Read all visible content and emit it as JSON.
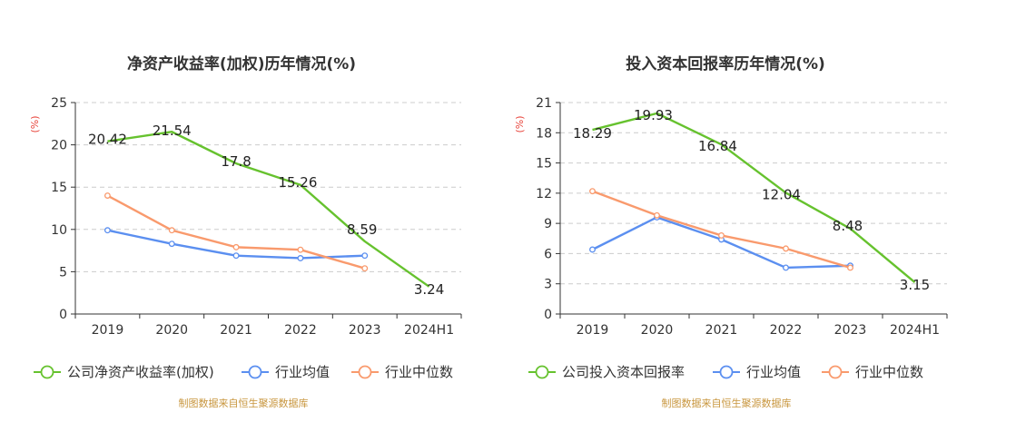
{
  "chart_data": [
    {
      "type": "line",
      "title": "净资产收益率(加权)历年情况(%)",
      "ylabel": "(%)",
      "categories": [
        "2019",
        "2020",
        "2021",
        "2022",
        "2023",
        "2024H1"
      ],
      "ylim": [
        0,
        25
      ],
      "yticks": [
        0,
        5,
        10,
        15,
        20,
        25
      ],
      "grid": true,
      "legend_position": "bottom",
      "source": "制图数据来自恒生聚源数据库",
      "series": [
        {
          "name": "公司净资产收益率(加权)",
          "color": "#66c22e",
          "labels": true,
          "values": [
            20.42,
            21.54,
            17.8,
            15.26,
            8.59,
            3.24
          ]
        },
        {
          "name": "行业均值",
          "color": "#5b8ff0",
          "labels": false,
          "values": [
            9.9,
            8.3,
            6.9,
            6.6,
            6.9,
            null
          ]
        },
        {
          "name": "行业中位数",
          "color": "#f99a6d",
          "labels": false,
          "values": [
            14.0,
            9.9,
            7.9,
            7.6,
            5.4,
            null
          ]
        }
      ]
    },
    {
      "type": "line",
      "title": "投入资本回报率历年情况(%)",
      "ylabel": "(%)",
      "categories": [
        "2019",
        "2020",
        "2021",
        "2022",
        "2023",
        "2024H1"
      ],
      "ylim": [
        0,
        21
      ],
      "yticks": [
        0,
        3,
        6,
        9,
        12,
        15,
        18,
        21
      ],
      "grid": true,
      "legend_position": "bottom",
      "source": "制图数据来自恒生聚源数据库",
      "series": [
        {
          "name": "公司投入资本回报率",
          "color": "#66c22e",
          "labels": true,
          "values": [
            18.29,
            19.93,
            16.84,
            12.04,
            8.48,
            3.15
          ]
        },
        {
          "name": "行业均值",
          "color": "#5b8ff0",
          "labels": false,
          "values": [
            6.4,
            9.6,
            7.4,
            4.6,
            4.8,
            null
          ]
        },
        {
          "name": "行业中位数",
          "color": "#f99a6d",
          "labels": false,
          "values": [
            12.2,
            9.8,
            7.8,
            6.5,
            4.6,
            null
          ]
        }
      ]
    }
  ]
}
